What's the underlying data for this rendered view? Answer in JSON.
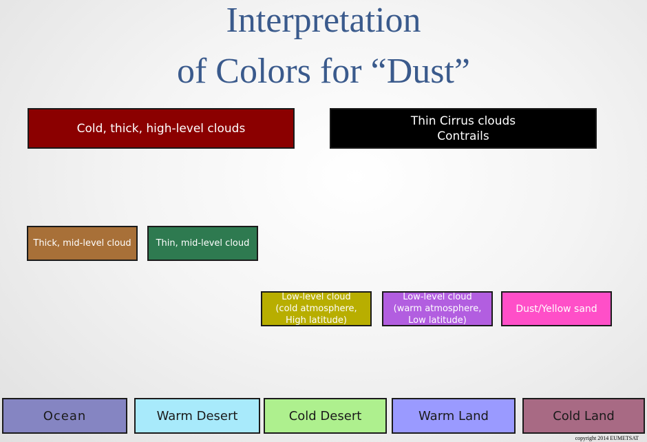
{
  "title": {
    "line1": "Interpretation",
    "line2": "of Colors for  “Dust”"
  },
  "boxes": {
    "cold_thick_high": {
      "lines": [
        "Cold, thick, high-level clouds"
      ],
      "color": "#8b0000"
    },
    "thin_cirrus": {
      "lines": [
        "Thin Cirrus clouds",
        "Contrails"
      ],
      "color": "#000000"
    },
    "thick_mid": {
      "lines": [
        "Thick, mid-level cloud"
      ],
      "color": "#a87038"
    },
    "thin_mid": {
      "lines": [
        "Thin, mid-level cloud"
      ],
      "color": "#2e7a50"
    },
    "low_cold": {
      "lines": [
        "Low-level cloud",
        "(cold atmosphere,",
        "High latitude)"
      ],
      "color": "#b8ae00"
    },
    "low_warm": {
      "lines": [
        "Low-level cloud",
        "(warm atmosphere,",
        "Low latitude)"
      ],
      "color": "#b25ee0"
    },
    "dust": {
      "lines": [
        "Dust/Yellow sand"
      ],
      "color": "#ff4fc8"
    }
  },
  "surfaces": {
    "ocean": {
      "label": "Ocean",
      "color": "#8585c2"
    },
    "warm_desert": {
      "label": "Warm Desert",
      "color": "#a8eafb"
    },
    "cold_desert": {
      "label": "Cold Desert",
      "color": "#aef08e"
    },
    "warm_land": {
      "label": "Warm Land",
      "color": "#9a9aff"
    },
    "cold_land": {
      "label": "Cold Land",
      "color": "#a86a84"
    }
  },
  "copyright": "copyright 2014 EUMETSAT"
}
